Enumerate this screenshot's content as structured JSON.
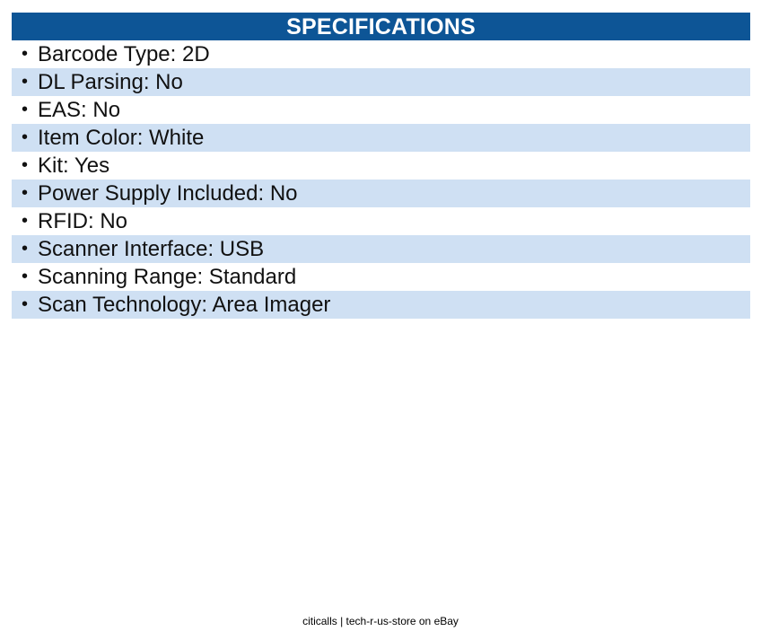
{
  "header": {
    "title": "SPECIFICATIONS"
  },
  "specs": [
    {
      "text": "Barcode Type: 2D"
    },
    {
      "text": "DL Parsing: No"
    },
    {
      "text": "EAS: No"
    },
    {
      "text": "Item Color: White"
    },
    {
      "text": "Kit: Yes"
    },
    {
      "text": "Power Supply Included: No"
    },
    {
      "text": "RFID: No"
    },
    {
      "text": "Scanner Interface: USB"
    },
    {
      "text": "Scanning Range: Standard"
    },
    {
      "text": "Scan Technology: Area Imager"
    }
  ],
  "footer": {
    "text": "citicalls | tech-r-us-store on eBay"
  },
  "colors": {
    "header_bg": "#0d5596",
    "row_alt_bg": "#cfe0f3",
    "header_text": "#ffffff"
  }
}
